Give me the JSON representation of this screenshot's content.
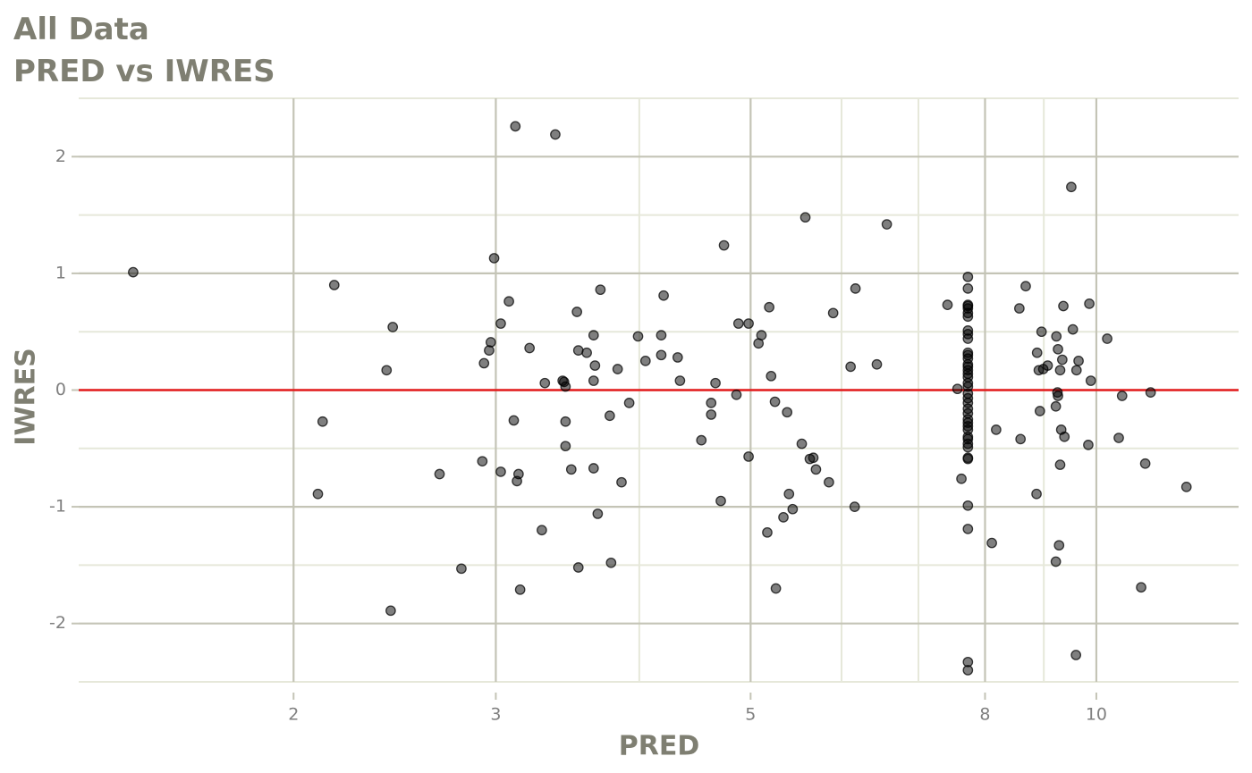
{
  "chart_data": {
    "type": "scatter",
    "title": "All Data",
    "subtitle": "PRED vs IWRES",
    "x_label": "PRED",
    "y_label": "IWRES",
    "x_log": true,
    "grid": true,
    "color": "#000000",
    "hline": 0,
    "hline_color": "#e41a1c",
    "xlim": [
      1.3,
      13.3
    ],
    "xticks": [
      2,
      3,
      5,
      8,
      10
    ],
    "ylim": [
      -2.5,
      2.5
    ],
    "yticks": [
      -2,
      -1,
      0,
      1,
      2
    ],
    "x": [
      1.45,
      2.17,
      2.12,
      2.1,
      2.41,
      2.44,
      2.43,
      2.68,
      2.8,
      2.92,
      2.93,
      2.96,
      2.97,
      2.99,
      3.03,
      3.03,
      3.08,
      3.11,
      3.12,
      3.13,
      3.14,
      3.15,
      3.21,
      3.29,
      3.31,
      3.38,
      3.43,
      3.44,
      3.45,
      3.45,
      3.45,
      3.49,
      3.53,
      3.54,
      3.54,
      3.6,
      3.65,
      3.65,
      3.66,
      3.65,
      3.68,
      3.7,
      3.77,
      3.78,
      3.83,
      3.86,
      3.92,
      3.99,
      4.05,
      4.18,
      4.18,
      4.2,
      4.32,
      4.34,
      4.53,
      4.62,
      4.62,
      4.66,
      4.71,
      4.74,
      4.86,
      4.88,
      4.98,
      4.98,
      5.08,
      5.11,
      5.17,
      5.19,
      5.21,
      5.25,
      5.26,
      5.34,
      5.38,
      5.4,
      5.44,
      5.54,
      5.58,
      5.63,
      5.67,
      5.7,
      5.85,
      5.9,
      6.11,
      6.16,
      6.17,
      6.44,
      6.57,
      7.42,
      7.57,
      7.63,
      7.73,
      7.73,
      7.73,
      7.73,
      7.73,
      7.73,
      7.73,
      7.73,
      7.73,
      7.73,
      7.73,
      7.73,
      7.73,
      7.73,
      7.73,
      7.73,
      7.73,
      7.73,
      7.73,
      7.73,
      7.73,
      7.73,
      7.73,
      7.73,
      7.73,
      7.73,
      7.73,
      7.73,
      7.73,
      7.73,
      7.73,
      7.73,
      7.73,
      7.73,
      7.73,
      7.73,
      7.73,
      7.73,
      7.73,
      8.11,
      8.18,
      8.57,
      8.59,
      8.68,
      8.87,
      8.88,
      8.91,
      8.93,
      8.96,
      8.99,
      9.07,
      9.22,
      9.22,
      9.23,
      9.25,
      9.26,
      9.26,
      9.28,
      9.3,
      9.3,
      9.32,
      9.34,
      9.36,
      9.38,
      9.51,
      9.54,
      9.6,
      9.61,
      9.65,
      9.84,
      9.86,
      9.89,
      10.22,
      10.46,
      10.53,
      10.94,
      11.03,
      11.15,
      11.98
    ],
    "values": [
      1.01,
      0.9,
      -0.27,
      -0.89,
      0.17,
      0.54,
      -1.89,
      -0.72,
      -1.53,
      -0.61,
      0.23,
      0.34,
      0.41,
      1.13,
      0.57,
      -0.7,
      0.76,
      -0.26,
      2.26,
      -0.78,
      -0.72,
      -1.71,
      0.36,
      -1.2,
      0.06,
      2.19,
      0.08,
      0.07,
      -0.27,
      -0.48,
      0.03,
      -0.68,
      0.67,
      0.34,
      -1.52,
      0.32,
      -0.67,
      0.47,
      0.21,
      0.08,
      -1.06,
      0.86,
      -0.22,
      -1.48,
      0.18,
      -0.79,
      -0.11,
      0.46,
      0.25,
      0.3,
      0.47,
      0.81,
      0.28,
      0.08,
      -0.43,
      -0.11,
      -0.21,
      0.06,
      -0.95,
      1.24,
      -0.04,
      0.57,
      0.57,
      -0.57,
      0.4,
      0.47,
      -1.22,
      0.71,
      0.12,
      -0.1,
      -1.7,
      -1.09,
      -0.19,
      -0.89,
      -1.02,
      -0.46,
      1.48,
      -0.59,
      -0.58,
      -0.68,
      -0.79,
      0.66,
      0.2,
      -1.0,
      0.87,
      0.22,
      1.42,
      0.73,
      0.01,
      -0.76,
      0.97,
      0.87,
      0.73,
      0.72,
      0.7,
      0.66,
      0.63,
      0.51,
      0.48,
      0.44,
      0.32,
      0.3,
      0.27,
      0.22,
      0.2,
      0.17,
      0.14,
      0.11,
      0.06,
      0.03,
      -0.03,
      -0.07,
      -0.11,
      -0.16,
      -0.2,
      -0.25,
      -0.28,
      -0.31,
      -0.34,
      -0.4,
      -0.42,
      -0.46,
      -0.49,
      -0.58,
      -0.59,
      -0.99,
      -1.19,
      -2.33,
      -2.4,
      -1.31,
      -0.34,
      0.7,
      -0.42,
      0.89,
      -0.89,
      0.32,
      0.17,
      -0.18,
      0.5,
      0.18,
      0.21,
      -1.47,
      -0.14,
      0.46,
      -0.02,
      -0.05,
      0.35,
      -1.33,
      0.17,
      -0.64,
      -0.34,
      0.26,
      0.72,
      -0.4,
      1.74,
      0.52,
      -2.27,
      0.17,
      0.25,
      -0.47,
      0.74,
      0.08,
      0.44,
      -0.41,
      -0.05,
      -1.69,
      -0.63,
      -0.02,
      -0.83
    ]
  }
}
